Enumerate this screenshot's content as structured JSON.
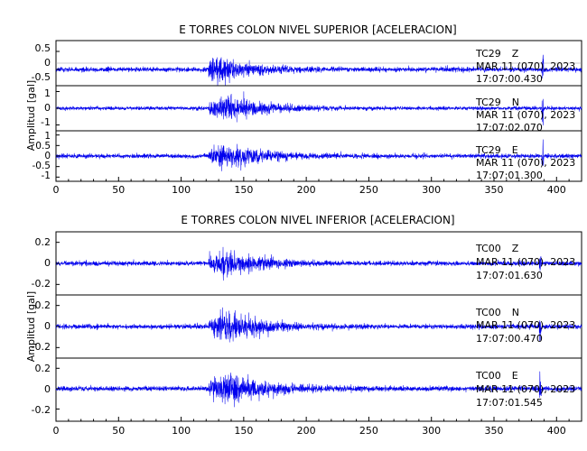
{
  "chart_data": [
    {
      "type": "line",
      "title": "E TORRES COLON NIVEL SUPERIOR [ACELERACION]",
      "ylabel": "Amplitud [gal]",
      "xlabel": "",
      "xlim": [
        0,
        420
      ],
      "xticks": [
        0,
        50,
        100,
        150,
        200,
        250,
        300,
        350,
        400
      ],
      "grid": false,
      "legend": "none",
      "line_color": "#0000ee",
      "traces": [
        {
          "station": "TC29",
          "component": "Z",
          "date_label": "MAR 11 (070), 2023",
          "time_label": "17:07:00.430",
          "ylim": [
            -0.45,
            0.8
          ],
          "yticks": [
            0.5,
            0.0,
            -0.5
          ],
          "noise_level": 0.055,
          "peak_amplitude": 0.8,
          "onset_s": 122,
          "peak_time_s": 128,
          "decay_s": 24,
          "spike_s": 389
        },
        {
          "station": "TC29",
          "component": "N",
          "date_label": "MAR 11 (070), 2023",
          "time_label": "17:07:02.070",
          "ylim": [
            -1.35,
            1.35
          ],
          "yticks": [
            1,
            0,
            -1
          ],
          "noise_level": 0.09,
          "peak_amplitude": 1.55,
          "onset_s": 122,
          "peak_time_s": 138,
          "decay_s": 26,
          "spike_s": 389
        },
        {
          "station": "TC29",
          "component": "E",
          "date_label": "MAR 11 (070), 2023",
          "time_label": "17:07:01.300",
          "ylim": [
            -1.2,
            1.2
          ],
          "yticks": [
            1.0,
            0.5,
            0.0,
            -0.5,
            -1.0
          ],
          "noise_level": 0.09,
          "peak_amplitude": 1.2,
          "onset_s": 122,
          "peak_time_s": 138,
          "decay_s": 26,
          "spike_s": 389
        }
      ]
    },
    {
      "type": "line",
      "title": "E TORRES COLON NIVEL INFERIOR [ACELERACION]",
      "ylabel": "Amplitud [gal]",
      "xlabel": "",
      "xlim": [
        0,
        420
      ],
      "xticks": [
        0,
        50,
        100,
        150,
        200,
        250,
        300,
        350,
        400
      ],
      "grid": false,
      "legend": "none",
      "line_color": "#0000ee",
      "traces": [
        {
          "station": "TC00",
          "component": "Z",
          "date_label": "MAR 11 (070), 2023",
          "time_label": "17:07:01.630",
          "ylim": [
            -0.3,
            0.3
          ],
          "yticks": [
            0.2,
            0.0,
            -0.2
          ],
          "noise_level": 0.018,
          "peak_amplitude": 0.26,
          "onset_s": 122,
          "peak_time_s": 135,
          "decay_s": 26,
          "spike_s": 387
        },
        {
          "station": "TC00",
          "component": "N",
          "date_label": "MAR 11 (070), 2023",
          "time_label": "17:07:00.470",
          "ylim": [
            -0.3,
            0.3
          ],
          "yticks": [
            0.2,
            0.0,
            -0.2
          ],
          "noise_level": 0.018,
          "peak_amplitude": 0.26,
          "onset_s": 122,
          "peak_time_s": 138,
          "decay_s": 28,
          "spike_s": 387
        },
        {
          "station": "TC00",
          "component": "E",
          "date_label": "MAR 11 (070), 2023",
          "time_label": "17:07:01.545",
          "ylim": [
            -0.32,
            0.3
          ],
          "yticks": [
            0.2,
            0.0,
            -0.2
          ],
          "noise_level": 0.02,
          "peak_amplitude": 0.28,
          "onset_s": 122,
          "peak_time_s": 140,
          "decay_s": 28,
          "spike_s": 387
        }
      ]
    }
  ]
}
